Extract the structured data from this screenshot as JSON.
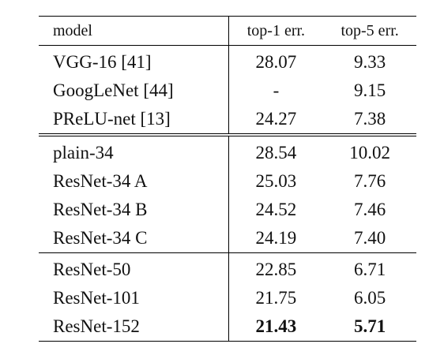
{
  "table": {
    "headers": [
      "model",
      "top-1 err.",
      "top-5 err."
    ],
    "groups": [
      {
        "rows": [
          {
            "model": "VGG-16 [41]",
            "top1": "28.07",
            "top5": "9.33"
          },
          {
            "model": "GoogLeNet [44]",
            "top1": "-",
            "top5": "9.15"
          },
          {
            "model": "PReLU-net [13]",
            "top1": "24.27",
            "top5": "7.38"
          }
        ]
      },
      {
        "rows": [
          {
            "model": "plain-34",
            "top1": "28.54",
            "top5": "10.02"
          },
          {
            "model": "ResNet-34 A",
            "top1": "25.03",
            "top5": "7.76"
          },
          {
            "model": "ResNet-34 B",
            "top1": "24.52",
            "top5": "7.46"
          },
          {
            "model": "ResNet-34 C",
            "top1": "24.19",
            "top5": "7.40"
          }
        ]
      },
      {
        "rows": [
          {
            "model": "ResNet-50",
            "top1": "22.85",
            "top5": "6.71"
          },
          {
            "model": "ResNet-101",
            "top1": "21.75",
            "top5": "6.05"
          },
          {
            "model": "ResNet-152",
            "top1": "21.43",
            "top5": "5.71",
            "bold": true
          }
        ]
      }
    ]
  }
}
